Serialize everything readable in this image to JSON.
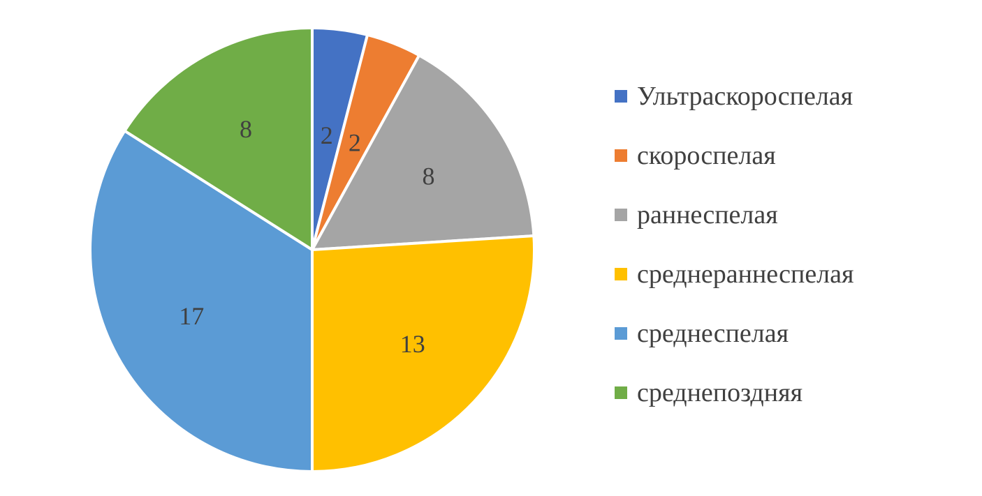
{
  "chart_data": {
    "type": "pie",
    "categories": [
      "Ультраскороспелая",
      "скороспелая",
      "раннеспелая",
      "среднераннеспелая",
      "среднеспелая",
      "среднепоздняя"
    ],
    "values": [
      2,
      2,
      8,
      13,
      17,
      8
    ],
    "colors": [
      "#4472C4",
      "#ED7D31",
      "#A5A5A5",
      "#FFC000",
      "#5B9BD5",
      "#70AD47"
    ],
    "data_labels": [
      "2",
      "2",
      "8",
      "13",
      "17",
      "8"
    ],
    "start_angle": "12 o'clock",
    "direction": "clockwise",
    "legend_position": "right",
    "title": ""
  }
}
